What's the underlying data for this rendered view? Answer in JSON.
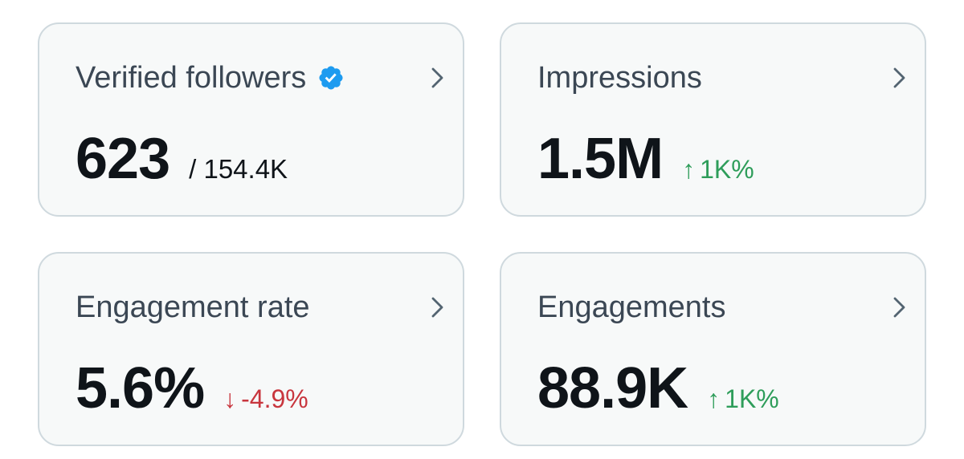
{
  "colors": {
    "card_background": "#f7f9f9",
    "card_border": "#cfd9de",
    "title_text": "#3b4754",
    "value_text": "#0f1419",
    "positive": "#2e9d5a",
    "negative": "#c8363e",
    "verified_badge": "#1d9bf0"
  },
  "cards": [
    {
      "title": "Verified followers",
      "icon": "verified-badge-icon",
      "value": "623",
      "suffix": "/ 154.4K",
      "chevron_icon": "chevron-right-icon"
    },
    {
      "title": "Impressions",
      "value": "1.5M",
      "delta_arrow": "↑",
      "delta": "1K%",
      "delta_direction": "up",
      "chevron_icon": "chevron-right-icon"
    },
    {
      "title": "Engagement rate",
      "value": "5.6%",
      "delta_arrow": "↓",
      "delta": "-4.9%",
      "delta_direction": "down",
      "chevron_icon": "chevron-right-icon"
    },
    {
      "title": "Engagements",
      "value": "88.9K",
      "delta_arrow": "↑",
      "delta": "1K%",
      "delta_direction": "up",
      "chevron_icon": "chevron-right-icon"
    }
  ]
}
